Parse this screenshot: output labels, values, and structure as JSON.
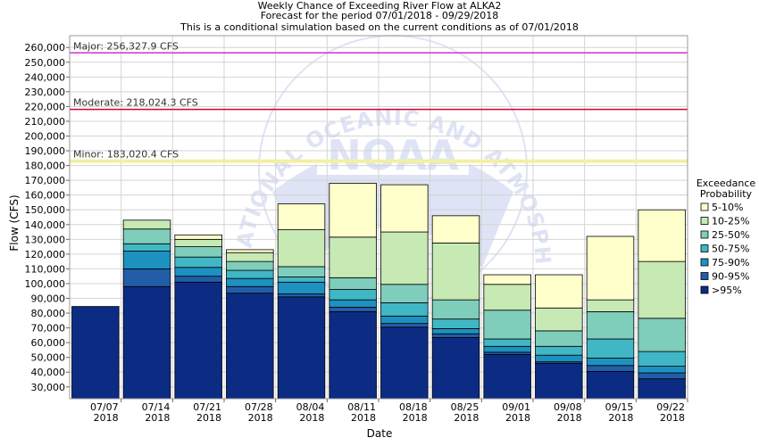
{
  "chart_data": {
    "type": "bar",
    "title": "Weekly Chance of Exceeding River Flow at ALKA2",
    "subtitle": "Forecast for the period 07/01/2018 - 09/29/2018",
    "note": "This is a conditional simulation based on the current conditions as of 07/01/2018",
    "xlabel": "Date",
    "ylabel": "Flow (CFS)",
    "ylim": [
      22000,
      268000
    ],
    "yticks": [
      30000,
      40000,
      50000,
      60000,
      70000,
      80000,
      90000,
      100000,
      110000,
      120000,
      130000,
      140000,
      150000,
      160000,
      170000,
      180000,
      190000,
      200000,
      210000,
      220000,
      230000,
      240000,
      250000,
      260000
    ],
    "ytick_labels": [
      "30,000",
      "40,000",
      "50,000",
      "60,000",
      "70,000",
      "80,000",
      "90,000",
      "100,000",
      "110,000",
      "120,000",
      "130,000",
      "140,000",
      "150,000",
      "160,000",
      "170,000",
      "180,000",
      "190,000",
      "200,000",
      "210,000",
      "220,000",
      "230,000",
      "240,000",
      "250,000",
      "260,000"
    ],
    "xtick_labels": [
      {
        "date": "07/07",
        "year": "2018"
      },
      {
        "date": "07/14",
        "year": "2018"
      },
      {
        "date": "07/21",
        "year": "2018"
      },
      {
        "date": "07/28",
        "year": "2018"
      },
      {
        "date": "08/04",
        "year": "2018"
      },
      {
        "date": "08/11",
        "year": "2018"
      },
      {
        "date": "08/18",
        "year": "2018"
      },
      {
        "date": "08/25",
        "year": "2018"
      },
      {
        "date": "09/01",
        "year": "2018"
      },
      {
        "date": "09/08",
        "year": "2018"
      },
      {
        "date": "09/15",
        "year": "2018"
      },
      {
        "date": "09/22",
        "year": "2018"
      }
    ],
    "grid": true,
    "legend_title": [
      "Exceedance",
      "Probability"
    ],
    "legend_position": "right",
    "series": [
      {
        "name": "5-10%",
        "color": "#ffffcc"
      },
      {
        "name": "10-25%",
        "color": "#c7e9b4"
      },
      {
        "name": "25-50%",
        "color": "#7fcdbb"
      },
      {
        "name": "50-75%",
        "color": "#41b6c4"
      },
      {
        "name": "75-90%",
        "color": "#1d91c0"
      },
      {
        "name": "90-95%",
        "color": "#225ea8"
      },
      {
        "name": ">95%",
        "color": "#0c2c84"
      }
    ],
    "stacks": [
      {
        "bounds": [
          84500
        ]
      },
      {
        "bounds": [
          98000,
          110000,
          122000,
          127000,
          137000,
          143000
        ]
      },
      {
        "bounds": [
          101000,
          105000,
          111000,
          118000,
          125000,
          130000,
          133000
        ]
      },
      {
        "bounds": [
          93500,
          98000,
          103500,
          109000,
          115000,
          121000,
          123000
        ]
      },
      {
        "bounds": [
          91000,
          93000,
          101000,
          104500,
          111500,
          136500,
          154000
        ]
      },
      {
        "bounds": [
          81000,
          84000,
          89000,
          96000,
          104000,
          131500,
          168000
        ]
      },
      {
        "bounds": [
          70500,
          73000,
          78000,
          87000,
          99500,
          135000,
          167000
        ]
      },
      {
        "bounds": [
          63500,
          66000,
          69500,
          76000,
          89000,
          127500,
          146000
        ]
      },
      {
        "bounds": [
          52000,
          53500,
          57500,
          62500,
          82000,
          99500,
          106000
        ]
      },
      {
        "bounds": [
          46000,
          47000,
          51500,
          57500,
          68000,
          83500,
          106000
        ]
      },
      {
        "bounds": [
          40500,
          44500,
          49500,
          62500,
          81000,
          89000,
          132000
        ]
      },
      {
        "bounds": [
          35500,
          39500,
          44000,
          54000,
          76500,
          115000,
          150000
        ]
      }
    ],
    "thresholds": [
      {
        "label": "Major: 256,327.9 CFS",
        "value": 256327.9,
        "color": "#cc33cc"
      },
      {
        "label": "Moderate: 218,024.3 CFS",
        "value": 218024.3,
        "color": "#cc0033"
      },
      {
        "label": "Minor: 183,020.4 CFS",
        "value": 183020.4,
        "color": "#f2f0a0"
      }
    ],
    "watermark": {
      "text": "NATIONAL OCEANIC AND ATMOSPHERIC ADMINISTRATION",
      "logo": "NOAA"
    }
  }
}
